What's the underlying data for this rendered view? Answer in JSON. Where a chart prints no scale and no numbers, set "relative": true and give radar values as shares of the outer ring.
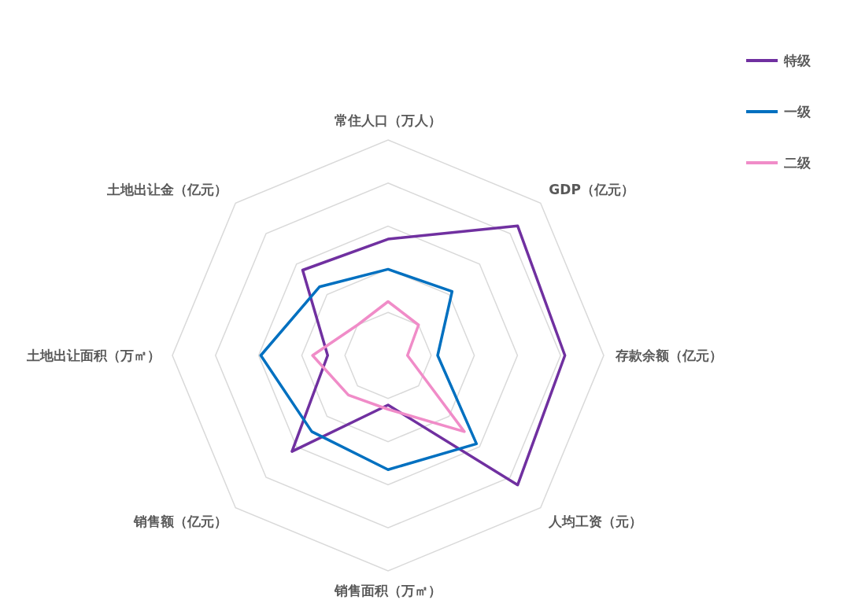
{
  "chart_data": {
    "type": "radar",
    "relative": true,
    "grid": true,
    "legend": "top right",
    "categories": [
      "常住人口（万人）",
      "GDP（亿元）",
      "存款余额（亿元）",
      "人均工资（元）",
      "销售面积（万㎡）",
      "销售额（亿元）",
      "土地出让面积（万㎡）",
      "土地出让金（亿元）"
    ],
    "series": [
      {
        "name": "特级",
        "color": "#7030a0",
        "values": [
          0.54,
          0.85,
          0.82,
          0.85,
          0.23,
          0.63,
          0.28,
          0.56
        ]
      },
      {
        "name": "一级",
        "color": "#0070c0",
        "values": [
          0.4,
          0.42,
          0.23,
          0.58,
          0.53,
          0.5,
          0.59,
          0.45
        ]
      },
      {
        "name": "二级",
        "color": "#f08cc8",
        "values": [
          0.25,
          0.2,
          0.09,
          0.5,
          0.25,
          0.26,
          0.35,
          0.2
        ]
      }
    ]
  }
}
